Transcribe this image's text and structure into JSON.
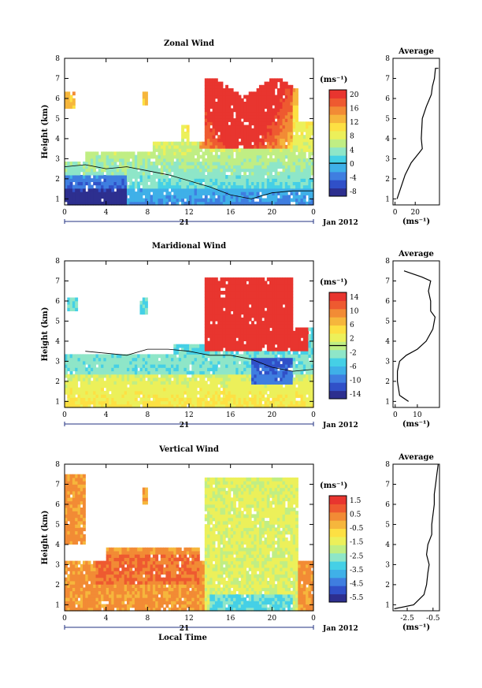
{
  "panels": [
    {
      "title": "Zonal Wind",
      "ylabel": "Height (km)",
      "xticks": [
        "0",
        "4",
        "8",
        "12",
        "16",
        "20",
        "0"
      ],
      "day_label": "21",
      "month_label": "Jan 2012",
      "xlabel": "",
      "cbar_unit": "(ms⁻¹)",
      "cbar_ticks": [
        "20",
        "16",
        "12",
        "8",
        "4",
        "0",
        "-4",
        "-8"
      ],
      "avg_title": "Average",
      "avg_xticks": [
        "0",
        "20"
      ],
      "avg_unit": "(ms⁻¹)"
    },
    {
      "title": "Maridional Wind",
      "ylabel": "Height (km)",
      "xticks": [
        "0",
        "4",
        "8",
        "12",
        "16",
        "20",
        "0"
      ],
      "day_label": "21",
      "month_label": "Jan 2012",
      "xlabel": "",
      "cbar_unit": "(ms⁻¹)",
      "cbar_ticks": [
        "14",
        "10",
        "6",
        "2",
        "-2",
        "-6",
        "-10",
        "-14"
      ],
      "avg_title": "Average",
      "avg_xticks": [
        "0",
        "10"
      ],
      "avg_unit": "(ms⁻¹)"
    },
    {
      "title": "Vertical Wind",
      "ylabel": "Height (km)",
      "xticks": [
        "0",
        "4",
        "8",
        "12",
        "16",
        "20",
        "0"
      ],
      "day_label": "21",
      "month_label": "Jan 2012",
      "xlabel": "Local Time",
      "cbar_unit": "(ms⁻¹)",
      "cbar_ticks": [
        "1.5",
        "0.5",
        "-0.5",
        "-1.5",
        "-2.5",
        "-3.5",
        "-4.5",
        "-5.5"
      ],
      "avg_title": "Average",
      "avg_xticks": [
        "-2.5",
        "-0.5"
      ],
      "avg_unit": "(ms⁻¹)"
    }
  ],
  "colormap": [
    "#2d2f8f",
    "#3050c8",
    "#3f7ee0",
    "#3fb0e8",
    "#45d0e6",
    "#8ee6c8",
    "#c0ee84",
    "#ecf05a",
    "#fde043",
    "#f6b63c",
    "#f28b35",
    "#ee5a30",
    "#e8352f"
  ],
  "chart_data": [
    {
      "type": "heatmap",
      "x_range": [
        0,
        24
      ],
      "y_range": [
        0.7,
        8
      ],
      "y_ticks": [
        1,
        2,
        3,
        4,
        5,
        6,
        7,
        8
      ],
      "x_ticks": [
        0,
        4,
        8,
        12,
        16,
        20,
        24
      ],
      "color_range": [
        -10,
        22
      ],
      "zero_contour": [
        [
          0,
          2.6
        ],
        [
          2,
          2.7
        ],
        [
          4,
          2.5
        ],
        [
          6,
          2.6
        ],
        [
          8,
          2.4
        ],
        [
          10,
          2.2
        ],
        [
          12,
          1.9
        ],
        [
          14,
          1.6
        ],
        [
          16,
          1.2
        ],
        [
          18,
          1.0
        ],
        [
          20,
          1.3
        ],
        [
          22,
          1.4
        ],
        [
          24,
          1.4
        ]
      ],
      "average_profile": [
        [
          2,
          1.0
        ],
        [
          6,
          1.6
        ],
        [
          10,
          2.2
        ],
        [
          16,
          2.8
        ],
        [
          24,
          3.3
        ],
        [
          27,
          3.5
        ],
        [
          26,
          4.0
        ],
        [
          27,
          5.0
        ],
        [
          31,
          5.6
        ],
        [
          36,
          6.2
        ],
        [
          37,
          6.6
        ],
        [
          39,
          7.0
        ],
        [
          40,
          7.5
        ],
        [
          43,
          7.5
        ]
      ],
      "average_xlim": [
        -2,
        44
      ]
    },
    {
      "type": "heatmap",
      "x_range": [
        0,
        24
      ],
      "y_range": [
        0.7,
        8
      ],
      "y_ticks": [
        1,
        2,
        3,
        4,
        5,
        6,
        7,
        8
      ],
      "x_ticks": [
        0,
        4,
        8,
        12,
        16,
        20,
        24
      ],
      "color_range": [
        -16,
        16
      ],
      "zero_contour": [
        [
          2,
          3.5
        ],
        [
          4,
          3.4
        ],
        [
          6,
          3.3
        ],
        [
          8,
          3.6
        ],
        [
          10,
          3.6
        ],
        [
          12,
          3.5
        ],
        [
          14,
          3.3
        ],
        [
          16,
          3.3
        ],
        [
          18,
          3.1
        ],
        [
          20,
          2.7
        ],
        [
          22,
          2.5
        ],
        [
          24,
          2.6
        ]
      ],
      "average_profile": [
        [
          6,
          1.0
        ],
        [
          2,
          1.3
        ],
        [
          1,
          2.0
        ],
        [
          1,
          2.5
        ],
        [
          2,
          3.0
        ],
        [
          5,
          3.3
        ],
        [
          10,
          3.6
        ],
        [
          14,
          4.0
        ],
        [
          17,
          4.6
        ],
        [
          18,
          5.2
        ],
        [
          16,
          5.5
        ],
        [
          16,
          6.0
        ],
        [
          15,
          6.5
        ],
        [
          16,
          7.0
        ],
        [
          12,
          7.2
        ],
        [
          4,
          7.5
        ]
      ],
      "average_xlim": [
        -1,
        20
      ]
    },
    {
      "type": "heatmap",
      "x_range": [
        0,
        24
      ],
      "y_range": [
        0.7,
        8
      ],
      "y_ticks": [
        1,
        2,
        3,
        4,
        5,
        6,
        7,
        8
      ],
      "x_ticks": [
        0,
        4,
        8,
        12,
        16,
        20,
        24
      ],
      "color_range": [
        -6,
        2
      ],
      "zero_contour": [],
      "average_profile": [
        [
          -3.5,
          0.8
        ],
        [
          -2.0,
          1.0
        ],
        [
          -1.2,
          1.5
        ],
        [
          -1.0,
          2.0
        ],
        [
          -0.9,
          2.6
        ],
        [
          -0.8,
          3.0
        ],
        [
          -1.0,
          3.5
        ],
        [
          -0.9,
          4.0
        ],
        [
          -0.6,
          4.5
        ],
        [
          -0.6,
          5.0
        ],
        [
          -0.5,
          5.5
        ],
        [
          -0.4,
          6.0
        ],
        [
          -0.4,
          6.5
        ],
        [
          -0.3,
          7.0
        ],
        [
          -0.2,
          7.5
        ],
        [
          -0.1,
          8.0
        ]
      ],
      "average_xlim": [
        -3.6,
        0
      ]
    }
  ]
}
